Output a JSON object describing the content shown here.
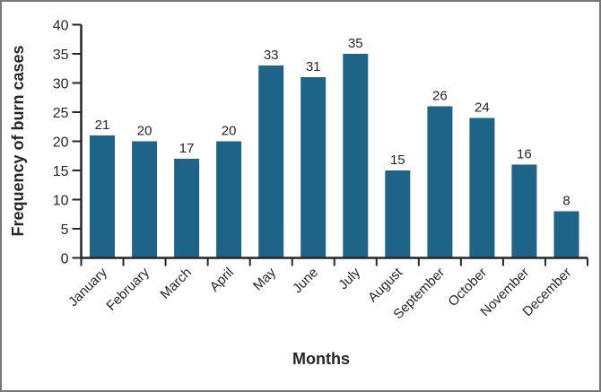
{
  "chart_data": {
    "type": "bar",
    "categories": [
      "January",
      "February",
      "March",
      "April",
      "May",
      "June",
      "July",
      "August",
      "September",
      "October",
      "November",
      "December"
    ],
    "values": [
      21,
      20,
      17,
      20,
      33,
      31,
      35,
      15,
      26,
      24,
      16,
      8
    ],
    "value_labels": [
      "21",
      "20",
      "17",
      "20",
      "33",
      "31",
      "35",
      "15",
      "26",
      "24",
      "16",
      "8"
    ],
    "title": "",
    "xlabel": "Months",
    "ylabel": "Frequency of burn cases",
    "ylim": [
      0,
      40
    ],
    "ytick_step": 5,
    "ytick_labels": [
      "0",
      "5",
      "10",
      "15",
      "20",
      "25",
      "30",
      "35",
      "40"
    ],
    "grid": "off",
    "legend": "none",
    "bar_color": "#1e6488",
    "axis_color": "#262626",
    "text_color": "#262626",
    "background_color": "#ffffff",
    "frame_border_color": "#777777"
  }
}
